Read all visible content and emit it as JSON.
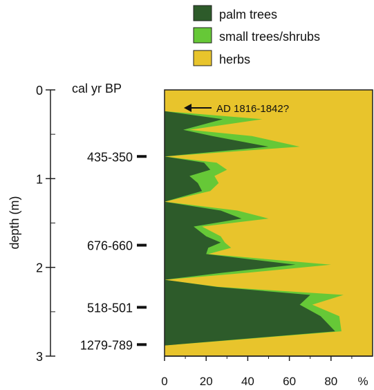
{
  "chart_data": {
    "type": "area",
    "orientation": "horizontal-stacked-percent",
    "xlabel": "",
    "ylabel": "depth (m)",
    "x_unit": "%",
    "x_ticks": [
      0,
      20,
      40,
      60,
      80
    ],
    "xlim": [
      0,
      100
    ],
    "y_ticks": [
      0,
      1,
      2,
      3
    ],
    "ylim": [
      0,
      3
    ],
    "y_inverted": true,
    "legend": {
      "placement": "top-right",
      "entries": [
        {
          "name": "palm trees",
          "color": "#2d5b2a"
        },
        {
          "name": "small trees/shrubs",
          "color": "#66c837"
        },
        {
          "name": "herbs",
          "color": "#e8c42c"
        }
      ]
    },
    "age_axis": {
      "label": "cal yr BP",
      "dates": [
        {
          "label": "435-350",
          "depth": 0.75
        },
        {
          "label": "676-660",
          "depth": 1.75
        },
        {
          "label": "518-501",
          "depth": 2.45
        },
        {
          "label": "1279-789",
          "depth": 2.87
        }
      ]
    },
    "annotation": {
      "text": "AD 1816-1842?",
      "depth": 0.2,
      "x_percent": 10
    },
    "depth": [
      0.24,
      0.33,
      0.45,
      0.52,
      0.64,
      0.75,
      0.82,
      0.9,
      0.97,
      1.05,
      1.14,
      1.26,
      1.36,
      1.45,
      1.54,
      1.65,
      1.72,
      1.78,
      1.85,
      1.97,
      2.06,
      2.14,
      2.22,
      2.31,
      2.42,
      2.55,
      2.72,
      2.88,
      2.95
    ],
    "series": [
      {
        "name": "palm trees",
        "values": [
          0,
          28,
          9,
          23,
          50,
          0,
          19,
          22,
          12,
          16,
          18,
          0,
          27,
          37,
          14,
          20,
          27,
          21,
          20,
          63,
          28,
          0,
          25,
          70,
          65,
          75,
          82,
          0,
          0
        ]
      },
      {
        "name": "small trees/shrubs",
        "values": [
          0,
          19,
          3,
          19,
          15,
          0,
          6,
          8,
          12,
          10,
          4,
          0,
          8,
          13,
          4,
          7,
          2,
          11,
          1,
          17,
          12,
          0,
          1,
          16,
          6,
          9,
          3,
          0,
          0
        ]
      }
    ],
    "herbs": "remainder to 100%"
  }
}
